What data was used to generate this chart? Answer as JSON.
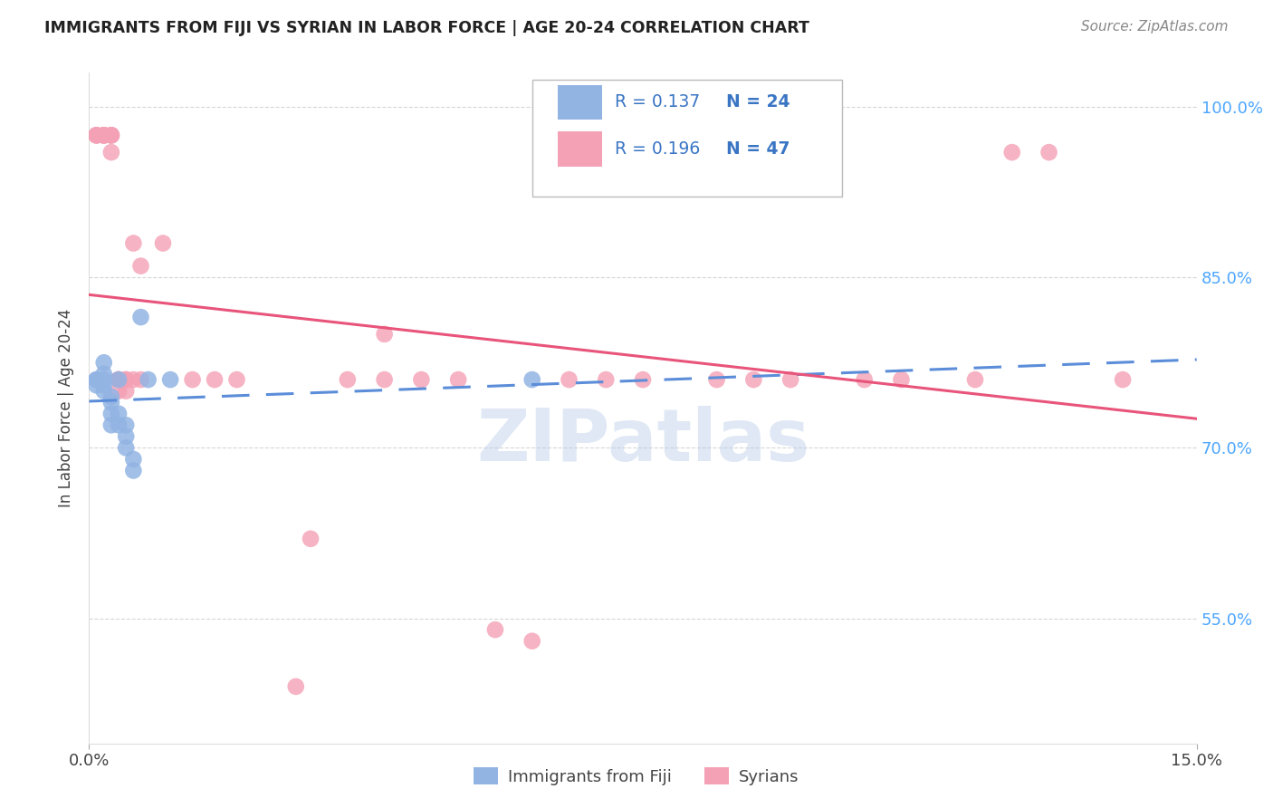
{
  "title": "IMMIGRANTS FROM FIJI VS SYRIAN IN LABOR FORCE | AGE 20-24 CORRELATION CHART",
  "source": "Source: ZipAtlas.com",
  "ylabel": "In Labor Force | Age 20-24",
  "xlim": [
    0.0,
    0.15
  ],
  "ylim": [
    0.44,
    1.03
  ],
  "yticks": [
    0.55,
    0.7,
    0.85,
    1.0
  ],
  "ytick_labels": [
    "55.0%",
    "70.0%",
    "85.0%",
    "100.0%"
  ],
  "xticks": [
    0.0,
    0.15
  ],
  "xtick_labels": [
    "0.0%",
    "15.0%"
  ],
  "fiji_R": "0.137",
  "fiji_N": "24",
  "syrian_R": "0.196",
  "syrian_N": "47",
  "fiji_color": "#92b4e3",
  "syrian_color": "#f4a0b5",
  "fiji_line_color": "#5b8dd9",
  "syrian_line_color": "#e8547a",
  "watermark": "ZIPatlas",
  "fiji_x": [
    0.001,
    0.001,
    0.001,
    0.002,
    0.002,
    0.002,
    0.002,
    0.002,
    0.003,
    0.003,
    0.003,
    0.003,
    0.004,
    0.004,
    0.004,
    0.005,
    0.005,
    0.005,
    0.006,
    0.006,
    0.007,
    0.008,
    0.011,
    0.06
  ],
  "fiji_y": [
    0.76,
    0.76,
    0.755,
    0.775,
    0.765,
    0.76,
    0.755,
    0.75,
    0.745,
    0.74,
    0.73,
    0.72,
    0.76,
    0.73,
    0.72,
    0.72,
    0.71,
    0.7,
    0.69,
    0.68,
    0.815,
    0.76,
    0.76,
    0.76
  ],
  "syrian_x": [
    0.001,
    0.001,
    0.001,
    0.002,
    0.002,
    0.002,
    0.002,
    0.003,
    0.003,
    0.003,
    0.003,
    0.004,
    0.004,
    0.004,
    0.004,
    0.005,
    0.005,
    0.005,
    0.006,
    0.006,
    0.007,
    0.007,
    0.01,
    0.014,
    0.017,
    0.02,
    0.028,
    0.03,
    0.035,
    0.04,
    0.04,
    0.045,
    0.05,
    0.055,
    0.06,
    0.065,
    0.07,
    0.075,
    0.085,
    0.09,
    0.095,
    0.105,
    0.11,
    0.12,
    0.125,
    0.13,
    0.14
  ],
  "syrian_y": [
    0.975,
    0.975,
    0.975,
    0.975,
    0.975,
    0.975,
    0.975,
    0.975,
    0.975,
    0.975,
    0.96,
    0.76,
    0.76,
    0.76,
    0.75,
    0.76,
    0.76,
    0.75,
    0.88,
    0.76,
    0.86,
    0.76,
    0.88,
    0.76,
    0.76,
    0.76,
    0.49,
    0.62,
    0.76,
    0.8,
    0.76,
    0.76,
    0.76,
    0.54,
    0.53,
    0.76,
    0.76,
    0.76,
    0.76,
    0.76,
    0.76,
    0.76,
    0.76,
    0.76,
    0.96,
    0.96,
    0.76
  ]
}
